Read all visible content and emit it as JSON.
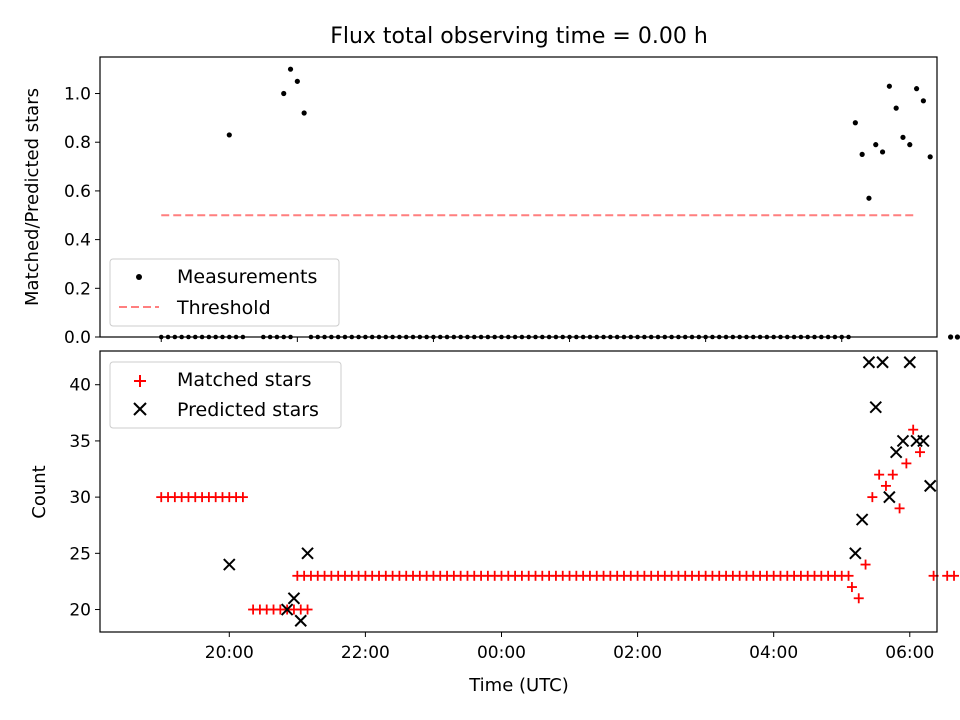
{
  "chart_data": [
    {
      "type": "scatter",
      "title": "Flux total observing time = 0.00 h",
      "ylabel": "Matched/Predicted stars",
      "xlabel": "",
      "xlim": [
        -0.9,
        11.4
      ],
      "ylim": [
        0.0,
        1.15
      ],
      "yticks": [
        0.0,
        0.2,
        0.4,
        0.6,
        0.8,
        1.0
      ],
      "ytick_labels": [
        "0.0",
        "0.2",
        "0.4",
        "0.6",
        "0.8",
        "1.0"
      ],
      "xticks": [
        0,
        2,
        4,
        6,
        8,
        10
      ],
      "show_xticklabels": false,
      "legend_location": "lower-left",
      "legend": [
        {
          "label": "Measurements",
          "marker": "dot",
          "color": "#000000"
        },
        {
          "label": "Threshold",
          "marker": "dashed-line",
          "color": "#ff7f7f"
        }
      ],
      "threshold": {
        "value": 0.5,
        "x_range": [
          0.0,
          11.1
        ],
        "color": "#ff7f7f",
        "style": "dashed"
      },
      "series": [
        {
          "label": "Measurements",
          "color": "#000000",
          "points": [
            [
              1.0,
              0.83
            ],
            [
              1.8,
              1.0
            ],
            [
              1.9,
              1.1
            ],
            [
              2.0,
              1.05
            ],
            [
              2.1,
              0.92
            ],
            [
              10.2,
              0.88
            ],
            [
              10.3,
              0.75
            ],
            [
              10.4,
              0.57
            ],
            [
              10.5,
              0.79
            ],
            [
              10.6,
              0.76
            ],
            [
              10.7,
              1.03
            ],
            [
              10.8,
              0.94
            ],
            [
              10.9,
              0.82
            ],
            [
              11.0,
              0.79
            ],
            [
              11.1,
              1.02
            ],
            [
              11.2,
              0.97
            ],
            [
              11.3,
              0.74
            ],
            [
              11.6,
              0.0
            ],
            [
              11.7,
              0.0
            ]
          ],
          "zeros": {
            "from": 0.0,
            "to": 10.1,
            "step": 0.1,
            "gaps": [
              [
                1.2,
                1.5
              ],
              [
                1.9,
                2.2
              ]
            ]
          }
        }
      ]
    },
    {
      "type": "scatter",
      "title": "",
      "ylabel": "Count",
      "xlabel": "Time (UTC)",
      "xlim": [
        -0.9,
        11.4
      ],
      "ylim": [
        18,
        43
      ],
      "yticks": [
        20,
        25,
        30,
        35,
        40
      ],
      "ytick_labels": [
        "20",
        "25",
        "30",
        "35",
        "40"
      ],
      "xticks": [
        1,
        3,
        5,
        7,
        9,
        11
      ],
      "xtick_labels": [
        "20:00",
        "22:00",
        "00:00",
        "02:00",
        "04:00",
        "06:00"
      ],
      "legend_location": "upper-left",
      "legend": [
        {
          "label": "Matched stars",
          "marker": "plus",
          "color": "#ff0000"
        },
        {
          "label": "Predicted stars",
          "marker": "x",
          "color": "#000000"
        }
      ],
      "series": [
        {
          "label": "Matched stars",
          "color": "#ff0000",
          "marker": "plus",
          "runs": [
            {
              "from": 0.0,
              "to": 1.2,
              "step": 0.1,
              "y": 30
            },
            {
              "from": 1.35,
              "to": 1.85,
              "step": 0.1,
              "y": 20
            },
            {
              "from": 1.95,
              "to": 2.15,
              "step": 0.1,
              "y": 20
            },
            {
              "from": 2.0,
              "to": 10.1,
              "step": 0.1,
              "y": 23
            }
          ],
          "points": [
            [
              10.15,
              22
            ],
            [
              10.25,
              21
            ],
            [
              10.35,
              24
            ],
            [
              10.45,
              30
            ],
            [
              10.55,
              32
            ],
            [
              10.65,
              31
            ],
            [
              10.75,
              32
            ],
            [
              10.85,
              29
            ],
            [
              10.95,
              33
            ],
            [
              11.05,
              36
            ],
            [
              11.15,
              34
            ],
            [
              11.35,
              23
            ],
            [
              11.55,
              23
            ],
            [
              11.65,
              23
            ]
          ]
        },
        {
          "label": "Predicted stars",
          "color": "#000000",
          "marker": "x",
          "points": [
            [
              1.0,
              24
            ],
            [
              1.85,
              20
            ],
            [
              1.95,
              21
            ],
            [
              2.05,
              19
            ],
            [
              2.15,
              25
            ],
            [
              10.2,
              25
            ],
            [
              10.3,
              28
            ],
            [
              10.4,
              42
            ],
            [
              10.5,
              38
            ],
            [
              10.6,
              42
            ],
            [
              10.7,
              30
            ],
            [
              10.8,
              34
            ],
            [
              10.9,
              35
            ],
            [
              11.0,
              42
            ],
            [
              11.1,
              35
            ],
            [
              11.2,
              35
            ],
            [
              11.3,
              31
            ]
          ]
        }
      ]
    }
  ]
}
